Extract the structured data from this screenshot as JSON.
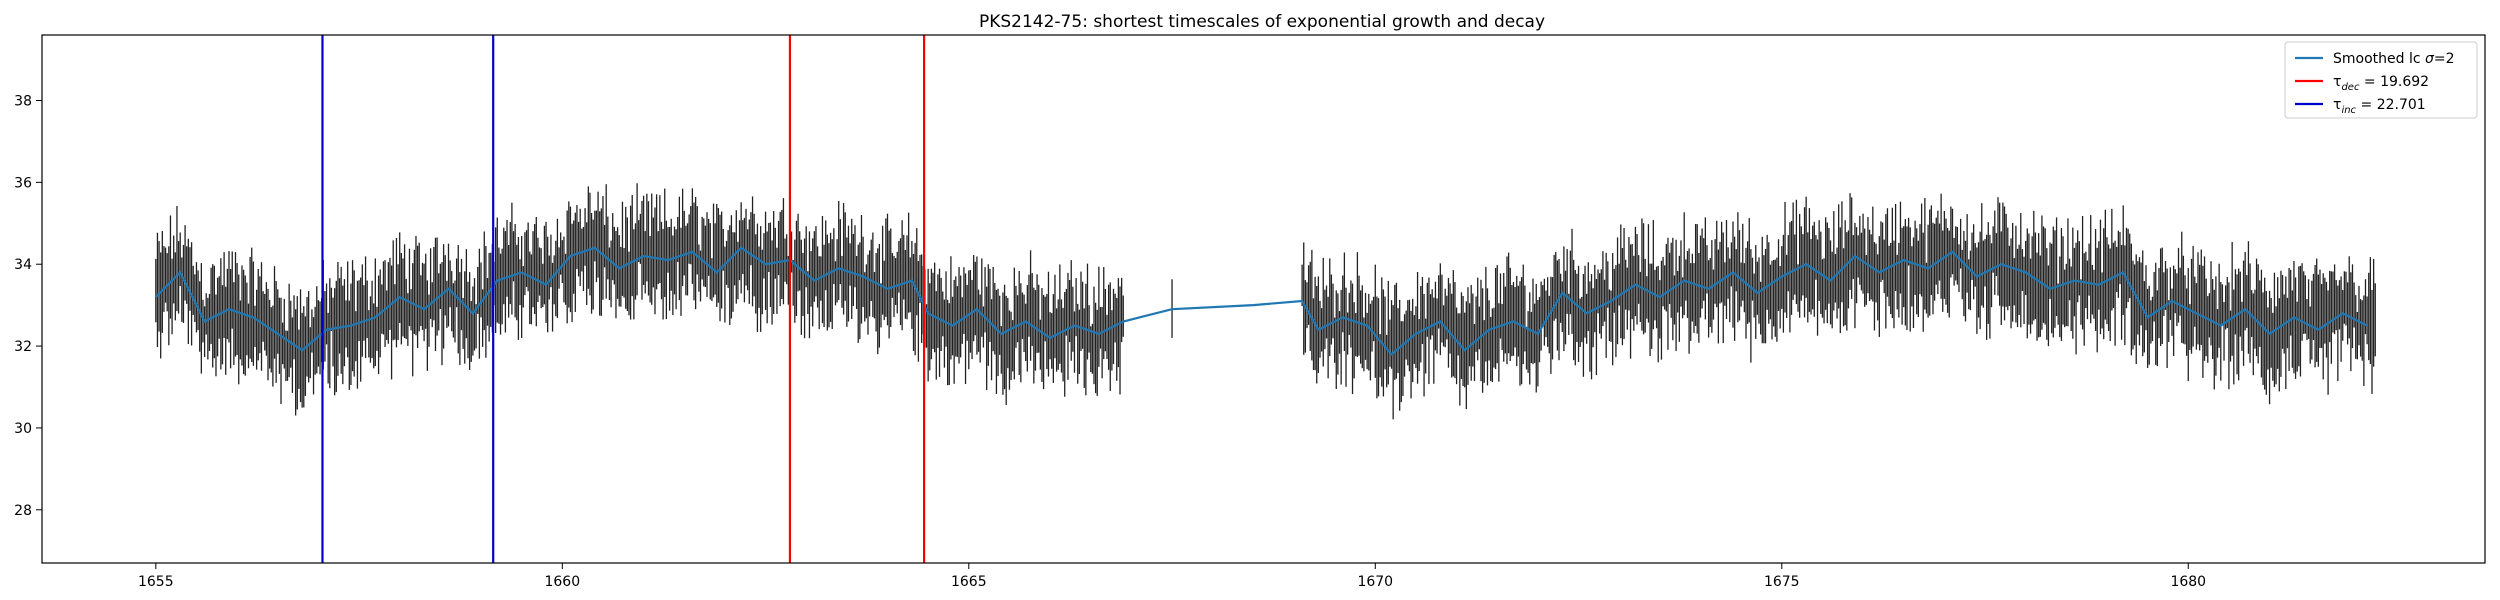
{
  "chart_data": {
    "type": "line",
    "title": "PKS2142-75: shortest timescales of exponential growth and decay",
    "xlabel": "",
    "ylabel": "",
    "xlim": [
      1653.6,
      1683.65
    ],
    "ylim": [
      26.7,
      39.6
    ],
    "x_ticks": [
      1655,
      1660,
      1665,
      1670,
      1675,
      1680
    ],
    "y_ticks": [
      28,
      30,
      32,
      34,
      36,
      38
    ],
    "grid": false,
    "legend_position": "top-right",
    "series": [
      {
        "name": "Smoothed lc σ=2",
        "kind": "smoothed-line",
        "color": "#1f77b4",
        "x": [
          1655.0,
          1655.3,
          1655.6,
          1655.9,
          1656.2,
          1656.5,
          1656.8,
          1657.1,
          1657.4,
          1657.7,
          1658.0,
          1658.3,
          1658.6,
          1658.9,
          1659.2,
          1659.5,
          1659.8,
          1660.1,
          1660.4,
          1660.7,
          1661.0,
          1661.3,
          1661.6,
          1661.9,
          1662.2,
          1662.5,
          1662.8,
          1663.1,
          1663.4,
          1663.7,
          1664.0,
          1664.3,
          1664.5,
          1664.8,
          1665.1,
          1665.4,
          1665.7,
          1666.0,
          1666.3,
          1666.6,
          1666.9,
          1667.5,
          1668.5,
          1669.1,
          1669.3,
          1669.6,
          1669.9,
          1670.2,
          1670.5,
          1670.8,
          1671.1,
          1671.4,
          1671.7,
          1672.0,
          1672.3,
          1672.6,
          1672.9,
          1673.2,
          1673.5,
          1673.8,
          1674.1,
          1674.4,
          1674.7,
          1675.0,
          1675.3,
          1675.6,
          1675.9,
          1676.2,
          1676.5,
          1676.8,
          1677.1,
          1677.4,
          1677.7,
          1678.0,
          1678.3,
          1678.6,
          1678.9,
          1679.2,
          1679.5,
          1679.8,
          1680.1,
          1680.4,
          1680.7,
          1681.0,
          1681.3,
          1681.6,
          1681.9,
          1682.2
        ],
        "y": [
          33.2,
          33.8,
          32.6,
          32.9,
          32.7,
          32.3,
          31.9,
          32.4,
          32.5,
          32.7,
          33.2,
          32.9,
          33.4,
          32.8,
          33.6,
          33.8,
          33.5,
          34.2,
          34.4,
          33.9,
          34.2,
          34.1,
          34.3,
          33.8,
          34.4,
          34.0,
          34.1,
          33.6,
          33.9,
          33.7,
          33.4,
          33.6,
          32.8,
          32.5,
          32.9,
          32.3,
          32.6,
          32.2,
          32.5,
          32.3,
          32.6,
          32.9,
          33.0,
          33.1,
          32.4,
          32.7,
          32.5,
          31.8,
          32.3,
          32.6,
          31.9,
          32.4,
          32.6,
          32.3,
          33.3,
          32.8,
          33.1,
          33.5,
          33.2,
          33.6,
          33.4,
          33.8,
          33.3,
          33.7,
          34.0,
          33.6,
          34.2,
          33.8,
          34.1,
          33.9,
          34.3,
          33.7,
          34.0,
          33.8,
          33.4,
          33.6,
          33.5,
          33.8,
          32.7,
          33.1,
          32.8,
          32.5,
          32.9,
          32.3,
          32.7,
          32.4,
          32.8,
          32.5
        ]
      },
      {
        "name": "τ_dec = 19.692",
        "kind": "vertical-lines",
        "color": "#ff0000",
        "x": [
          1662.8,
          1664.45
        ]
      },
      {
        "name": "τ_inc = 22.701",
        "kind": "vertical-lines",
        "color": "#0000cc",
        "x": [
          1657.05,
          1659.15
        ]
      },
      {
        "name": "",
        "kind": "error-bars",
        "color": "#222222",
        "segments": [
          [
            1655.0,
            1666.9
          ],
          [
            1667.5,
            1667.5
          ],
          [
            1669.1,
            1682.3
          ]
        ],
        "sample_step": 0.02,
        "y_mean_follows_smoothed": true,
        "typical_half_range": 1.0,
        "extremes": {
          "ymin": 29.5,
          "ymax": 36.5
        }
      }
    ],
    "legend": [
      {
        "label_main": "Smoothed lc ",
        "label_sym": "σ",
        "label_tail": "=2",
        "color": "#1f77b4"
      },
      {
        "label_main": "τ",
        "label_sub": "dec",
        "label_tail": " = 19.692",
        "color": "#ff0000"
      },
      {
        "label_main": "τ",
        "label_sub": "inc",
        "label_tail": " = 22.701",
        "color": "#0000cc"
      }
    ]
  }
}
